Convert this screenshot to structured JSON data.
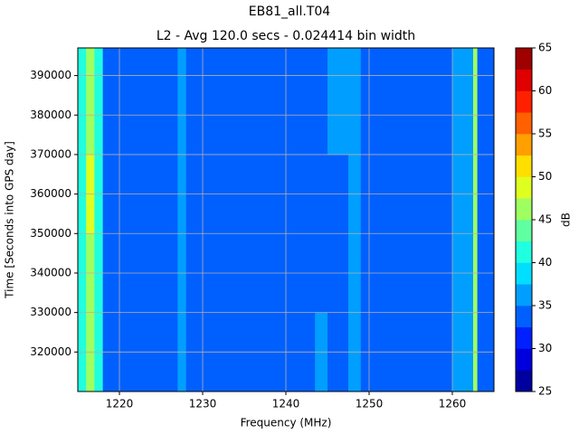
{
  "chart_data": {
    "type": "heatmap",
    "title": "EB81_all.T04",
    "subtitle": "L2 - Avg 120.0 secs - 0.024414 bin width",
    "xlabel": "Frequency (MHz)",
    "ylabel": "Time [Seconds into GPS day]",
    "colorbar_label": "dB",
    "x_edges": [
      1215,
      1216,
      1217,
      1218,
      1227,
      1228,
      1243.5,
      1245,
      1247.5,
      1249,
      1260,
      1262.5,
      1263,
      1265
    ],
    "y_edges": [
      310000,
      330000,
      350000,
      370000,
      397000
    ],
    "z": [
      [
        41,
        47,
        41,
        34,
        36,
        34,
        36,
        34,
        37,
        34,
        37,
        46,
        34
      ],
      [
        42,
        47,
        41,
        34,
        36,
        34,
        34,
        34,
        37,
        34,
        37,
        46,
        34
      ],
      [
        42,
        48,
        41,
        34,
        36,
        34,
        34,
        34,
        36,
        34,
        37,
        46,
        34
      ],
      [
        41,
        47,
        41,
        34,
        36,
        34,
        34,
        35,
        36,
        34,
        37,
        45,
        34
      ]
    ],
    "xlim": [
      1215,
      1265
    ],
    "xticks": [
      1220,
      1230,
      1240,
      1250,
      1260
    ],
    "ylim": [
      310000,
      397000
    ],
    "yticks": [
      320000,
      330000,
      340000,
      350000,
      360000,
      370000,
      380000,
      390000
    ],
    "clim": [
      25,
      65
    ],
    "cticks": [
      25,
      30,
      35,
      40,
      45,
      50,
      55,
      60,
      65
    ],
    "colorscale": [
      "#00009f",
      "#0000df",
      "#0020ff",
      "#0060ff",
      "#009fff",
      "#00dfff",
      "#20ffdf",
      "#60ff9f",
      "#9fff60",
      "#dfff20",
      "#ffdf00",
      "#ff9f00",
      "#ff6000",
      "#ff2000",
      "#df0000",
      "#9f0000"
    ],
    "grid": true
  }
}
